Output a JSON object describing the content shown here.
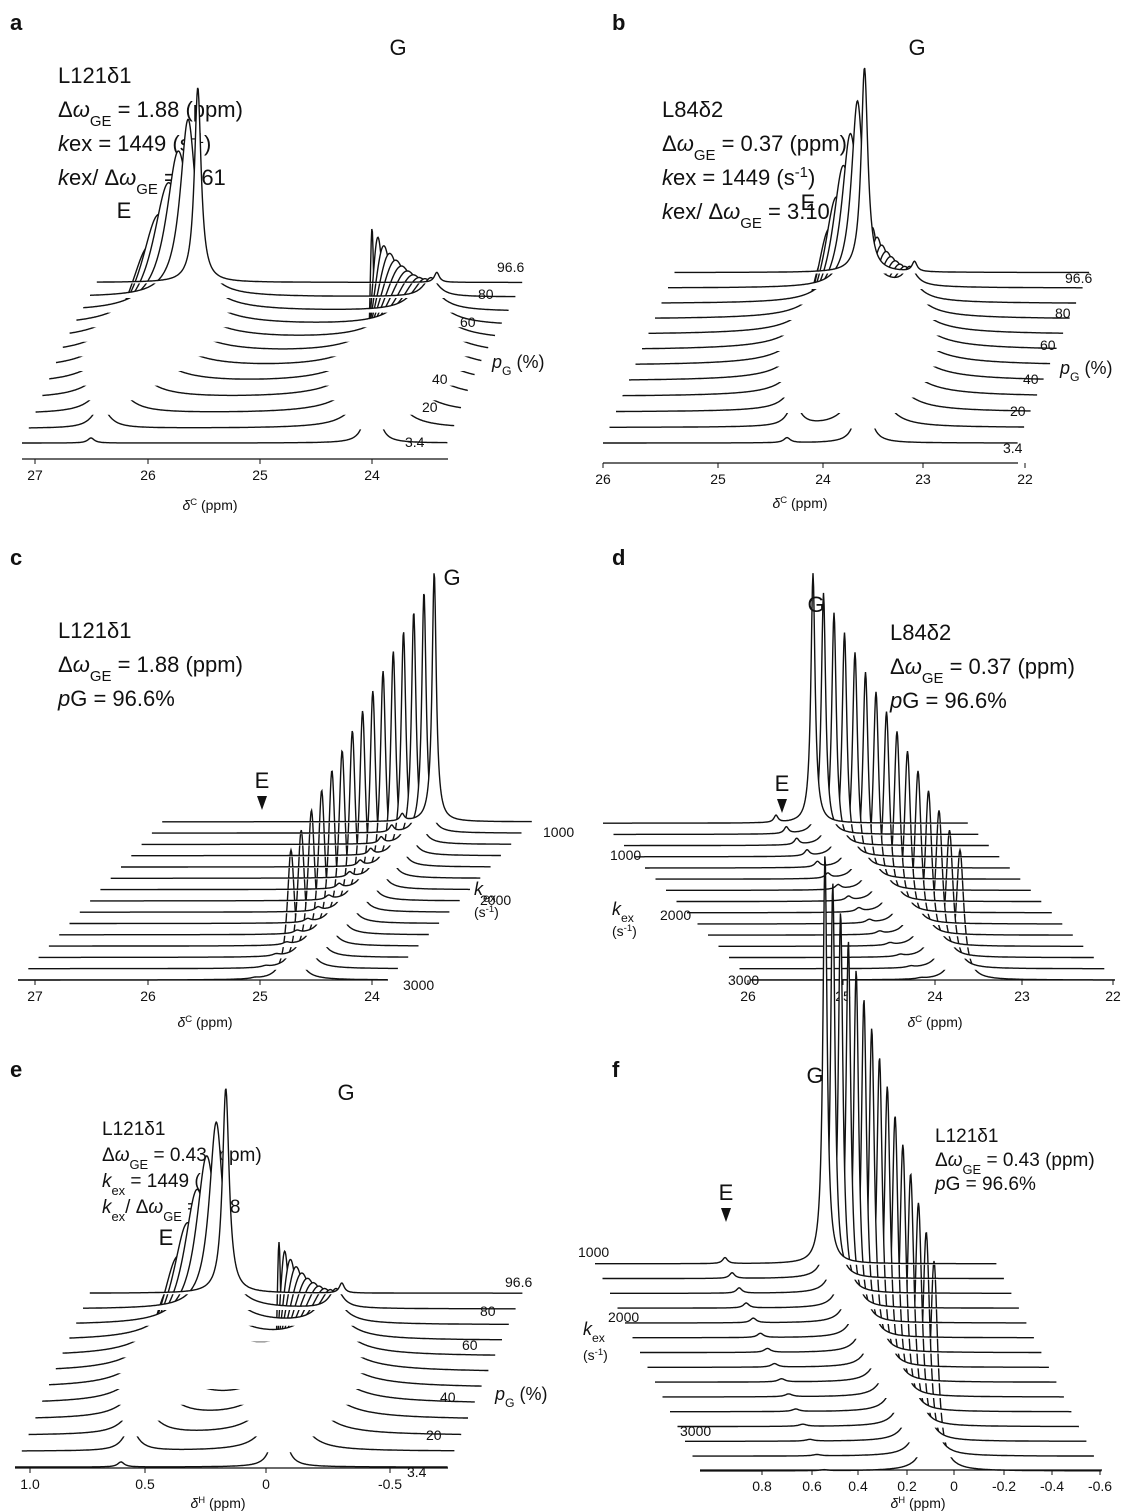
{
  "figure": {
    "panels": [
      {
        "letter": "a",
        "info": [
          [
            {
              "t": "L121δ1"
            }
          ],
          [
            {
              "t": "Δ"
            },
            {
              "t": "ω",
              "i": 1
            },
            {
              "t": "GE",
              "sub": 1
            },
            {
              "t": " = 1.88 (ppm)"
            }
          ],
          [
            {
              "t": "k",
              "i": 1
            },
            {
              "t": "ex = 1449 (s"
            },
            {
              "t": "-1",
              "sup": 1
            },
            {
              "t": ")"
            }
          ],
          [
            {
              "t": "k",
              "i": 1
            },
            {
              "t": "ex/ Δ"
            },
            {
              "t": "ω",
              "i": 1
            },
            {
              "t": "GE",
              "sub": 1
            },
            {
              "t": " = 0.61"
            }
          ]
        ],
        "peak_labels": {
          "g": "G",
          "e": "E"
        },
        "axis_label": [
          {
            "t": "δ",
            "i": 1
          },
          {
            "t": "C",
            "sup": 1
          },
          {
            "t": " (ppm)"
          }
        ],
        "ticks": [
          "27",
          "26",
          "25",
          "24"
        ],
        "trace_labels": [
          "96.6",
          "80",
          "60",
          "40",
          "20",
          "3.4"
        ],
        "series_label": [
          {
            "t": "p",
            "i": 1
          },
          {
            "t": "G",
            "sub": 1
          },
          {
            "t": " (%)"
          }
        ]
      },
      {
        "letter": "b",
        "info": [
          [
            {
              "t": "L84δ2"
            }
          ],
          [
            {
              "t": "Δ"
            },
            {
              "t": "ω",
              "i": 1
            },
            {
              "t": "GE",
              "sub": 1
            },
            {
              "t": " = 0.37 (ppm)"
            }
          ],
          [
            {
              "t": "k",
              "i": 1
            },
            {
              "t": "ex = 1449 (s"
            },
            {
              "t": "-1",
              "sup": 1
            },
            {
              "t": ")"
            }
          ],
          [
            {
              "t": "k",
              "i": 1
            },
            {
              "t": "ex/ Δ"
            },
            {
              "t": "ω",
              "i": 1
            },
            {
              "t": "GE",
              "sub": 1
            },
            {
              "t": " = 3.10"
            }
          ]
        ],
        "peak_labels": {
          "g": "G",
          "e": "E"
        },
        "axis_label": [
          {
            "t": "δ",
            "i": 1
          },
          {
            "t": "C",
            "sup": 1
          },
          {
            "t": " (ppm)"
          }
        ],
        "ticks": [
          "26",
          "25",
          "24",
          "23",
          "22"
        ],
        "trace_labels": [
          "96.6",
          "80",
          "60",
          "40",
          "20",
          "3.4"
        ],
        "series_label": [
          {
            "t": "p",
            "i": 1
          },
          {
            "t": "G",
            "sub": 1
          },
          {
            "t": " (%)"
          }
        ]
      },
      {
        "letter": "c",
        "info": [
          [
            {
              "t": "L121δ1"
            }
          ],
          [
            {
              "t": "Δ"
            },
            {
              "t": "ω",
              "i": 1
            },
            {
              "t": "GE",
              "sub": 1
            },
            {
              "t": " = 1.88 (ppm)"
            }
          ],
          [
            {
              "t": "p",
              "i": 1
            },
            {
              "t": "G = 96.6%"
            }
          ]
        ],
        "peak_labels": {
          "g": "G",
          "e": "E"
        },
        "axis_label": [
          {
            "t": "δ",
            "i": 1
          },
          {
            "t": "C",
            "sup": 1
          },
          {
            "t": " (ppm)"
          }
        ],
        "ticks": [
          "27",
          "26",
          "25",
          "24"
        ],
        "trace_labels": [
          "1000",
          "2000",
          "3000"
        ],
        "series_label": [
          {
            "t": "k",
            "i": 1
          },
          {
            "t": "ex",
            "sub": 1
          }
        ],
        "series_unit": [
          {
            "t": "(s"
          },
          {
            "t": "-1",
            "sup": 1
          },
          {
            "t": ")"
          }
        ]
      },
      {
        "letter": "d",
        "info": [
          [
            {
              "t": "L84δ2"
            }
          ],
          [
            {
              "t": "Δ"
            },
            {
              "t": "ω",
              "i": 1
            },
            {
              "t": "GE",
              "sub": 1
            },
            {
              "t": " = 0.37 (ppm)"
            }
          ],
          [
            {
              "t": "p",
              "i": 1
            },
            {
              "t": "G = 96.6%"
            }
          ]
        ],
        "peak_labels": {
          "g": "G",
          "e": "E"
        },
        "axis_label": [
          {
            "t": "δ",
            "i": 1
          },
          {
            "t": "C",
            "sup": 1
          },
          {
            "t": " (ppm)"
          }
        ],
        "ticks": [
          "26",
          "25",
          "24",
          "23",
          "22"
        ],
        "trace_labels": [
          "1000",
          "2000",
          "3000"
        ],
        "series_label": [
          {
            "t": "k",
            "i": 1
          },
          {
            "t": "ex",
            "sub": 1
          }
        ],
        "series_unit": [
          {
            "t": "(s"
          },
          {
            "t": "-1",
            "sup": 1
          },
          {
            "t": ")"
          }
        ]
      },
      {
        "letter": "e",
        "info": [
          [
            {
              "t": "L121δ1"
            }
          ],
          [
            {
              "t": "Δ"
            },
            {
              "t": "ω",
              "i": 1
            },
            {
              "t": "GE",
              "sub": 1
            },
            {
              "t": " = 0.43  (ppm)"
            }
          ],
          [
            {
              "t": "k",
              "i": 1
            },
            {
              "t": "ex",
              "sub": 1
            },
            {
              "t": " = 1449 (s"
            },
            {
              "t": "-1",
              "sup": 1
            },
            {
              "t": ")"
            }
          ],
          [
            {
              "t": "k",
              "i": 1
            },
            {
              "t": "ex",
              "sub": 1
            },
            {
              "t": "/ Δ"
            },
            {
              "t": "ω",
              "i": 1
            },
            {
              "t": "GE",
              "sub": 1
            },
            {
              "t": " = 0.68"
            }
          ]
        ],
        "peak_labels": {
          "g": "G",
          "e": "E"
        },
        "axis_label": [
          {
            "t": "δ",
            "i": 1
          },
          {
            "t": "H",
            "sup": 1
          },
          {
            "t": " (ppm)"
          }
        ],
        "ticks": [
          "1.0",
          "0.5",
          "0",
          "-0.5"
        ],
        "trace_labels": [
          "96.6",
          "80",
          "60",
          "40",
          "20",
          "3.4"
        ],
        "series_label": [
          {
            "t": "p",
            "i": 1
          },
          {
            "t": "G",
            "sub": 1
          },
          {
            "t": " (%)"
          }
        ]
      },
      {
        "letter": "f",
        "info": [
          [
            {
              "t": "L121δ1"
            }
          ],
          [
            {
              "t": "Δ"
            },
            {
              "t": "ω",
              "i": 1
            },
            {
              "t": "GE",
              "sub": 1
            },
            {
              "t": " = 0.43 (ppm)"
            }
          ],
          [
            {
              "t": "p",
              "i": 1
            },
            {
              "t": "G = 96.6%"
            }
          ]
        ],
        "peak_labels": {
          "g": "G",
          "e": "E"
        },
        "axis_label": [
          {
            "t": "δ",
            "i": 1
          },
          {
            "t": "H",
            "sup": 1
          },
          {
            "t": " (ppm)"
          }
        ],
        "ticks": [
          "0.8",
          "0.6",
          "0.4",
          "0.2",
          "0",
          "-0.2",
          "-0.4",
          "-0.6"
        ],
        "trace_labels": [
          "1000",
          "2000",
          "3000"
        ],
        "series_label": [
          {
            "t": "k",
            "i": 1
          },
          {
            "t": "ex",
            "sub": 1
          }
        ],
        "series_unit": [
          {
            "t": "(s"
          },
          {
            "t": "-1",
            "sup": 1
          },
          {
            "t": ")"
          }
        ]
      }
    ]
  },
  "chart_data": [
    {
      "type": "line",
      "panel": "a",
      "x_unit": "δC (ppm)",
      "x_reversed": true,
      "grid": false,
      "ticks_ppm": [
        27,
        26,
        25,
        24
      ],
      "series_variable": "pG (%)",
      "series_values": [
        3.4,
        20,
        40,
        60,
        80,
        96.6
      ],
      "delta_omega_GE_ppm": 1.88,
      "kex_per_s": 1449,
      "kex_over_delta_omega": 0.61,
      "peak_E_ppm": 26.3,
      "peak_G_ppm": 24.42
    },
    {
      "type": "line",
      "panel": "b",
      "x_unit": "δC (ppm)",
      "x_reversed": true,
      "grid": false,
      "ticks_ppm": [
        26,
        25,
        24,
        23,
        22
      ],
      "series_variable": "pG (%)",
      "series_values": [
        3.4,
        20,
        40,
        60,
        80,
        96.6
      ],
      "delta_omega_GE_ppm": 0.37,
      "kex_per_s": 1449,
      "kex_over_delta_omega": 3.1,
      "peak_E_ppm": 24.05,
      "peak_G_ppm": 23.68
    },
    {
      "type": "line",
      "panel": "c",
      "x_unit": "δC (ppm)",
      "x_reversed": true,
      "grid": false,
      "ticks_ppm": [
        27,
        26,
        25,
        24
      ],
      "series_variable": "kex (s-1)",
      "series_labeled_values": [
        1000,
        2000,
        3000
      ],
      "delta_omega_GE_ppm": 1.88,
      "pG_percent": 96.6,
      "peak_E_ppm": 26.3,
      "peak_G_ppm": 24.42
    },
    {
      "type": "line",
      "panel": "d",
      "x_unit": "δC (ppm)",
      "x_reversed": true,
      "grid": false,
      "ticks_ppm": [
        26,
        25,
        24,
        23,
        22
      ],
      "series_variable": "kex (s-1)",
      "series_labeled_values": [
        1000,
        2000,
        3000
      ],
      "delta_omega_GE_ppm": 0.37,
      "pG_percent": 96.6,
      "peak_E_ppm": 24.05,
      "peak_G_ppm": 23.68
    },
    {
      "type": "line",
      "panel": "e",
      "x_unit": "δH (ppm)",
      "x_reversed": true,
      "grid": false,
      "ticks_ppm": [
        1.0,
        0.5,
        0,
        -0.5
      ],
      "series_variable": "pG (%)",
      "series_values": [
        3.4,
        20,
        40,
        60,
        80,
        96.6
      ],
      "delta_omega_GE_ppm": 0.43,
      "kex_per_s": 1449,
      "kex_over_delta_omega": 0.68,
      "peak_E_ppm": 0.47,
      "peak_G_ppm": 0.04
    },
    {
      "type": "line",
      "panel": "f",
      "x_unit": "δH (ppm)",
      "x_reversed": true,
      "grid": false,
      "ticks_ppm": [
        0.8,
        0.6,
        0.4,
        0.2,
        0,
        -0.2,
        -0.4,
        -0.6
      ],
      "series_variable": "kex (s-1)",
      "series_labeled_values": [
        1000,
        2000,
        3000
      ],
      "delta_omega_GE_ppm": 0.43,
      "pG_percent": 96.6,
      "peak_E_ppm": 0.47,
      "peak_G_ppm": 0.04
    }
  ]
}
